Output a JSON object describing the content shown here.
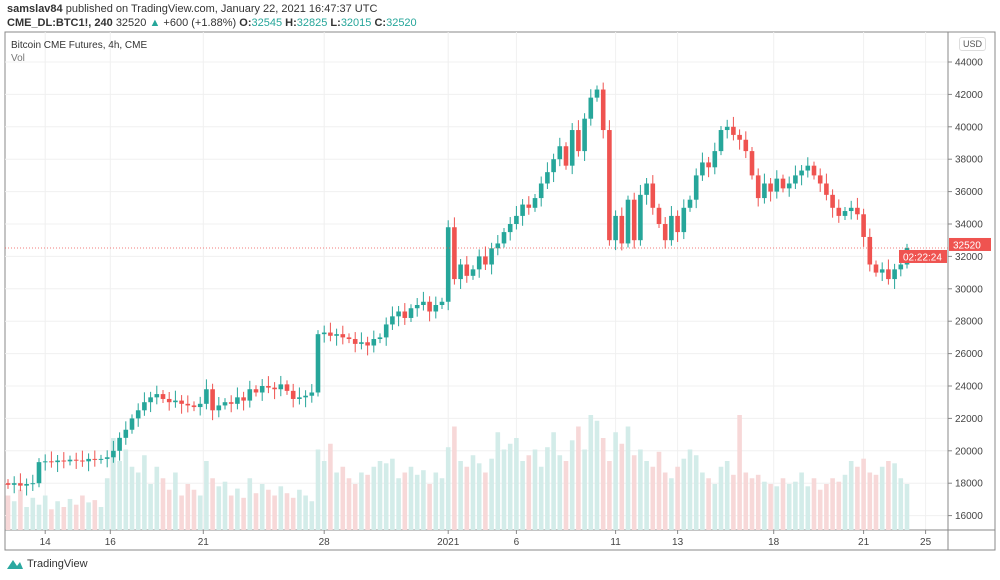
{
  "header": {
    "author": "samslav84",
    "published": "published on TradingView.com, January 22, 2021 16:47:37 UTC",
    "symbol": "CME_DL:BTC1!, 240",
    "last": "32520",
    "change": "+600 (+1.88%)",
    "o_label": "O:",
    "o": "32545",
    "h_label": "H:",
    "h": "32825",
    "l_label": "L:",
    "l": "32015",
    "c_label": "C:",
    "c": "32520"
  },
  "legend": {
    "title": "Bitcoin CME Futures, 4h, CME",
    "vol": "Vol"
  },
  "currency": "USD",
  "price_label": "32520",
  "countdown": "02:22:24",
  "brand": "TradingView",
  "colors": {
    "up": "#26a69a",
    "down": "#ef5350",
    "up_vol": "#d3ece9",
    "down_vol": "#f7d8d8"
  },
  "chart_data": {
    "type": "candlestick",
    "ylim": [
      15000,
      45000
    ],
    "yticks": [
      16000,
      18000,
      20000,
      22000,
      24000,
      26000,
      28000,
      30000,
      32000,
      34000,
      36000,
      38000,
      40000,
      42000,
      44000
    ],
    "xticks": [
      {
        "label": "14",
        "index": 6
      },
      {
        "label": "16",
        "index": 16.5
      },
      {
        "label": "21",
        "index": 31.5
      },
      {
        "label": "28",
        "index": 51
      },
      {
        "label": "2021",
        "index": 71
      },
      {
        "label": "6",
        "index": 82
      },
      {
        "label": "11",
        "index": 98
      },
      {
        "label": "13",
        "index": 108
      },
      {
        "label": "18",
        "index": 123.5
      },
      {
        "label": "21",
        "index": 138
      },
      {
        "label": "25",
        "index": 148
      }
    ],
    "close": [
      17900,
      18000,
      17850,
      17950,
      18000,
      19300,
      19350,
      19300,
      19400,
      19350,
      19450,
      19400,
      19350,
      19500,
      19450,
      19500,
      19600,
      20000,
      20800,
      21300,
      22000,
      22500,
      23000,
      23300,
      23500,
      23200,
      23000,
      23100,
      22900,
      22800,
      22700,
      22900,
      23800,
      22500,
      22800,
      23000,
      22900,
      23300,
      23100,
      23800,
      23600,
      24000,
      23900,
      23800,
      24100,
      23700,
      23200,
      23300,
      23400,
      23600,
      27200,
      27300,
      27100,
      27200,
      27000,
      26900,
      26600,
      26700,
      26500,
      26900,
      27000,
      27800,
      28300,
      28600,
      28200,
      28800,
      29000,
      29200,
      28600,
      29000,
      29200,
      33800,
      30600,
      31500,
      30800,
      31200,
      32000,
      31500,
      32500,
      32800,
      33500,
      34000,
      34500,
      35200,
      35000,
      35600,
      36500,
      37200,
      38000,
      38800,
      37600,
      39800,
      38500,
      40500,
      41800,
      42300,
      39800,
      33000,
      34500,
      32800,
      35500,
      33000,
      35800,
      36500,
      35000,
      34000,
      33000,
      34500,
      33500,
      35000,
      35500,
      37000,
      37800,
      37500,
      38500,
      39800,
      40000,
      39500,
      39200,
      38500,
      37000,
      35600,
      36500,
      36000,
      36800,
      36200,
      36500,
      37000,
      37300,
      37600,
      37000,
      36500,
      35800,
      35000,
      34500,
      34800,
      35000,
      34600,
      33200,
      31500,
      31000,
      31200,
      30600,
      31200,
      31500,
      32520
    ],
    "volume": [
      30,
      25,
      35,
      20,
      28,
      22,
      30,
      18,
      25,
      20,
      27,
      22,
      30,
      24,
      26,
      20,
      45,
      80,
      60,
      70,
      55,
      50,
      65,
      40,
      55,
      45,
      35,
      50,
      30,
      40,
      35,
      30,
      60,
      45,
      38,
      42,
      30,
      36,
      28,
      45,
      32,
      40,
      35,
      30,
      38,
      32,
      28,
      35,
      30,
      25,
      70,
      60,
      75,
      50,
      55,
      45,
      40,
      50,
      48,
      55,
      60,
      58,
      62,
      45,
      50,
      55,
      48,
      52,
      40,
      50,
      45,
      72,
      90,
      60,
      55,
      65,
      58,
      50,
      62,
      85,
      70,
      75,
      80,
      60,
      65,
      70,
      55,
      72,
      85,
      65,
      60,
      78,
      90,
      70,
      100,
      95,
      80,
      60,
      85,
      75,
      90,
      65,
      70,
      60,
      55,
      68,
      50,
      45,
      55,
      62,
      70,
      65,
      50,
      45,
      40,
      55,
      60,
      48,
      100,
      50,
      45,
      48,
      42,
      40,
      38,
      45,
      40,
      42,
      50,
      38,
      45,
      35,
      40,
      45,
      42,
      48,
      60,
      55,
      62,
      50,
      48,
      55,
      60,
      58,
      45,
      40
    ]
  }
}
